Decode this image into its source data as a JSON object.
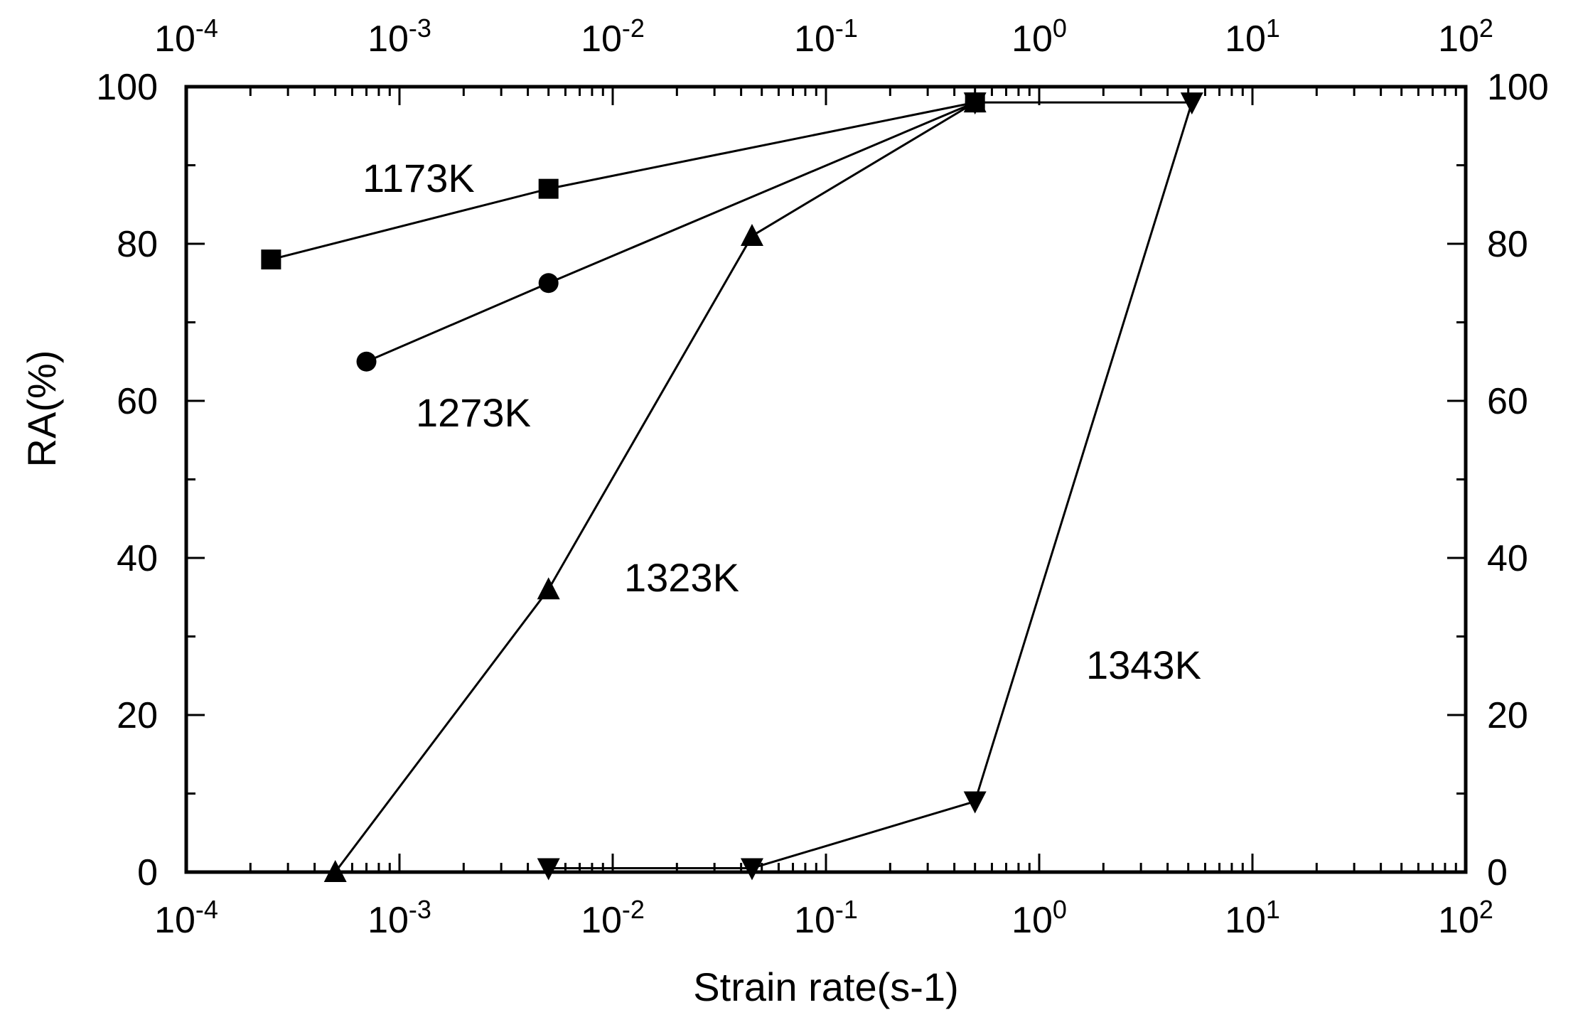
{
  "chart_data": {
    "type": "line",
    "title": "",
    "xlabel": "Strain rate(s-1)",
    "ylabel": "RA(%)",
    "x_scale": "log",
    "xlim": [
      0.0001,
      100
    ],
    "ylim": [
      0,
      100
    ],
    "x_ticks": [
      {
        "base": "10",
        "exp": "-4"
      },
      {
        "base": "10",
        "exp": "-3"
      },
      {
        "base": "10",
        "exp": "-2"
      },
      {
        "base": "10",
        "exp": "-1"
      },
      {
        "base": "10",
        "exp": "0"
      },
      {
        "base": "10",
        "exp": "1"
      },
      {
        "base": "10",
        "exp": "2"
      }
    ],
    "y_ticks": [
      "0",
      "20",
      "40",
      "60",
      "80",
      "100"
    ],
    "grid": false,
    "series": [
      {
        "name": "1173K",
        "marker": "square",
        "x": [
          0.00025,
          0.005,
          0.5
        ],
        "y": [
          78,
          87,
          98
        ]
      },
      {
        "name": "1273K",
        "marker": "circle",
        "x": [
          0.0007,
          0.005,
          0.5
        ],
        "y": [
          65,
          75,
          98
        ]
      },
      {
        "name": "1323K",
        "marker": "triangle-up",
        "x": [
          0.0005,
          0.005,
          0.045,
          0.5
        ],
        "y": [
          0,
          36,
          81,
          98
        ]
      },
      {
        "name": "1343K",
        "marker": "triangle-down",
        "x": [
          0.005,
          0.045,
          0.5,
          5.2,
          0.5
        ],
        "y": [
          0.5,
          0.5,
          9,
          98,
          98
        ]
      }
    ]
  }
}
